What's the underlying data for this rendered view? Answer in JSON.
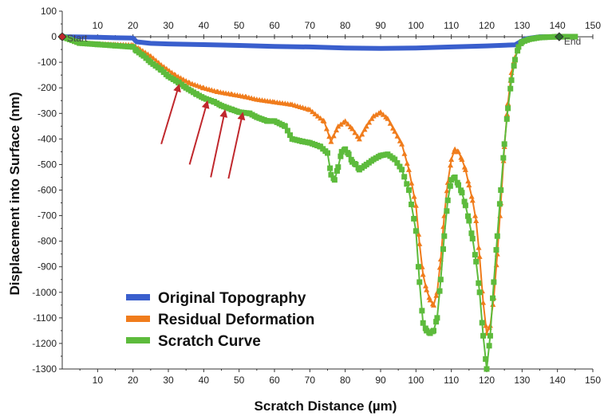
{
  "chart_data": {
    "type": "line",
    "xlabel": "Scratch Distance (µm)",
    "ylabel": "Displacement into Surface (nm)",
    "xlim": [
      0,
      150
    ],
    "ylim": [
      -1300,
      100
    ],
    "x_ticks": [
      10,
      20,
      30,
      40,
      50,
      60,
      70,
      80,
      90,
      100,
      110,
      120,
      130,
      140,
      150
    ],
    "y_ticks": [
      100,
      0,
      -100,
      -200,
      -300,
      -400,
      -500,
      -600,
      -700,
      -800,
      -900,
      -1000,
      -1100,
      -1200,
      -1300
    ],
    "grid": false,
    "legend_position": "bottom-left",
    "start_label": "Start",
    "end_label": "End",
    "series": [
      {
        "name": "Original Topography",
        "color": "#3a5fcd",
        "marker": "line",
        "points": [
          [
            0,
            0
          ],
          [
            5,
            -1
          ],
          [
            10,
            -2
          ],
          [
            15,
            -4
          ],
          [
            20,
            -5
          ],
          [
            21,
            -20
          ],
          [
            25,
            -26
          ],
          [
            30,
            -28
          ],
          [
            40,
            -31
          ],
          [
            50,
            -34
          ],
          [
            60,
            -38
          ],
          [
            70,
            -40
          ],
          [
            80,
            -44
          ],
          [
            90,
            -46
          ],
          [
            100,
            -44
          ],
          [
            110,
            -40
          ],
          [
            120,
            -36
          ],
          [
            128,
            -32
          ],
          [
            131,
            -8
          ],
          [
            135,
            0
          ],
          [
            141,
            0
          ],
          [
            145,
            0
          ]
        ]
      },
      {
        "name": "Residual Deformation",
        "color": "#f07c1c",
        "marker": "triangle",
        "points": [
          [
            0,
            0
          ],
          [
            3,
            -15
          ],
          [
            5,
            -25
          ],
          [
            10,
            -28
          ],
          [
            15,
            -30
          ],
          [
            20,
            -32
          ],
          [
            22,
            -48
          ],
          [
            25,
            -75
          ],
          [
            28,
            -110
          ],
          [
            32,
            -150
          ],
          [
            36,
            -180
          ],
          [
            40,
            -200
          ],
          [
            44,
            -215
          ],
          [
            48,
            -225
          ],
          [
            52,
            -235
          ],
          [
            55,
            -245
          ],
          [
            60,
            -255
          ],
          [
            65,
            -265
          ],
          [
            70,
            -285
          ],
          [
            74,
            -330
          ],
          [
            76,
            -410
          ],
          [
            78,
            -350
          ],
          [
            80,
            -330
          ],
          [
            82,
            -360
          ],
          [
            84,
            -400
          ],
          [
            86,
            -350
          ],
          [
            88,
            -310
          ],
          [
            90,
            -295
          ],
          [
            92,
            -320
          ],
          [
            94,
            -370
          ],
          [
            96,
            -420
          ],
          [
            98,
            -520
          ],
          [
            100,
            -660
          ],
          [
            101,
            -810
          ],
          [
            102,
            -930
          ],
          [
            103,
            -990
          ],
          [
            104,
            -1030
          ],
          [
            105,
            -1050
          ],
          [
            106,
            -1000
          ],
          [
            107,
            -870
          ],
          [
            108,
            -700
          ],
          [
            109,
            -570
          ],
          [
            110,
            -480
          ],
          [
            111,
            -440
          ],
          [
            112,
            -450
          ],
          [
            113,
            -480
          ],
          [
            114,
            -520
          ],
          [
            115,
            -580
          ],
          [
            116,
            -640
          ],
          [
            117,
            -720
          ],
          [
            118,
            -860
          ],
          [
            119,
            -1040
          ],
          [
            120,
            -1160
          ],
          [
            121,
            -1130
          ],
          [
            122,
            -1020
          ],
          [
            123,
            -850
          ],
          [
            124,
            -650
          ],
          [
            125,
            -430
          ],
          [
            126,
            -260
          ],
          [
            127,
            -140
          ],
          [
            128,
            -80
          ],
          [
            129,
            -40
          ],
          [
            130,
            -20
          ],
          [
            132,
            -10
          ],
          [
            135,
            -3
          ],
          [
            140,
            0
          ],
          [
            145,
            0
          ]
        ]
      },
      {
        "name": "Scratch Curve",
        "color": "#5dbb3c",
        "marker": "square",
        "points": [
          [
            0,
            0
          ],
          [
            5,
            -25
          ],
          [
            10,
            -30
          ],
          [
            15,
            -35
          ],
          [
            20,
            -40
          ],
          [
            21,
            -55
          ],
          [
            23,
            -75
          ],
          [
            25,
            -100
          ],
          [
            28,
            -130
          ],
          [
            30,
            -155
          ],
          [
            33,
            -180
          ],
          [
            35,
            -200
          ],
          [
            38,
            -225
          ],
          [
            40,
            -240
          ],
          [
            43,
            -255
          ],
          [
            45,
            -270
          ],
          [
            48,
            -285
          ],
          [
            50,
            -295
          ],
          [
            53,
            -300
          ],
          [
            55,
            -315
          ],
          [
            58,
            -330
          ],
          [
            60,
            -330
          ],
          [
            63,
            -350
          ],
          [
            65,
            -400
          ],
          [
            68,
            -410
          ],
          [
            70,
            -415
          ],
          [
            73,
            -430
          ],
          [
            75,
            -455
          ],
          [
            76,
            -540
          ],
          [
            77,
            -560
          ],
          [
            78,
            -510
          ],
          [
            79,
            -450
          ],
          [
            80,
            -440
          ],
          [
            81,
            -460
          ],
          [
            82,
            -490
          ],
          [
            83,
            -500
          ],
          [
            84,
            -520
          ],
          [
            86,
            -500
          ],
          [
            88,
            -480
          ],
          [
            90,
            -465
          ],
          [
            92,
            -460
          ],
          [
            94,
            -480
          ],
          [
            96,
            -520
          ],
          [
            98,
            -600
          ],
          [
            100,
            -760
          ],
          [
            101,
            -960
          ],
          [
            102,
            -1120
          ],
          [
            103,
            -1150
          ],
          [
            104,
            -1160
          ],
          [
            105,
            -1150
          ],
          [
            106,
            -1100
          ],
          [
            107,
            -950
          ],
          [
            108,
            -780
          ],
          [
            109,
            -640
          ],
          [
            110,
            -560
          ],
          [
            111,
            -550
          ],
          [
            112,
            -580
          ],
          [
            113,
            -610
          ],
          [
            114,
            -660
          ],
          [
            115,
            -720
          ],
          [
            116,
            -790
          ],
          [
            117,
            -880
          ],
          [
            118,
            -1000
          ],
          [
            119,
            -1170
          ],
          [
            120,
            -1300
          ],
          [
            121,
            -1170
          ],
          [
            122,
            -960
          ],
          [
            123,
            -780
          ],
          [
            124,
            -600
          ],
          [
            125,
            -420
          ],
          [
            126,
            -280
          ],
          [
            127,
            -170
          ],
          [
            128,
            -90
          ],
          [
            129,
            -40
          ],
          [
            130,
            -20
          ],
          [
            132,
            -10
          ],
          [
            135,
            -3
          ],
          [
            140,
            0
          ],
          [
            145,
            0
          ]
        ]
      }
    ],
    "annotations": [
      {
        "type": "arrow",
        "color": "#c0282d",
        "from": [
          28,
          -420
        ],
        "to": [
          33,
          -190
        ]
      },
      {
        "type": "arrow",
        "color": "#c0282d",
        "from": [
          36,
          -500
        ],
        "to": [
          41,
          -255
        ]
      },
      {
        "type": "arrow",
        "color": "#c0282d",
        "from": [
          42,
          -550
        ],
        "to": [
          46,
          -290
        ]
      },
      {
        "type": "arrow",
        "color": "#c0282d",
        "from": [
          47,
          -555
        ],
        "to": [
          51,
          -300
        ]
      }
    ]
  }
}
